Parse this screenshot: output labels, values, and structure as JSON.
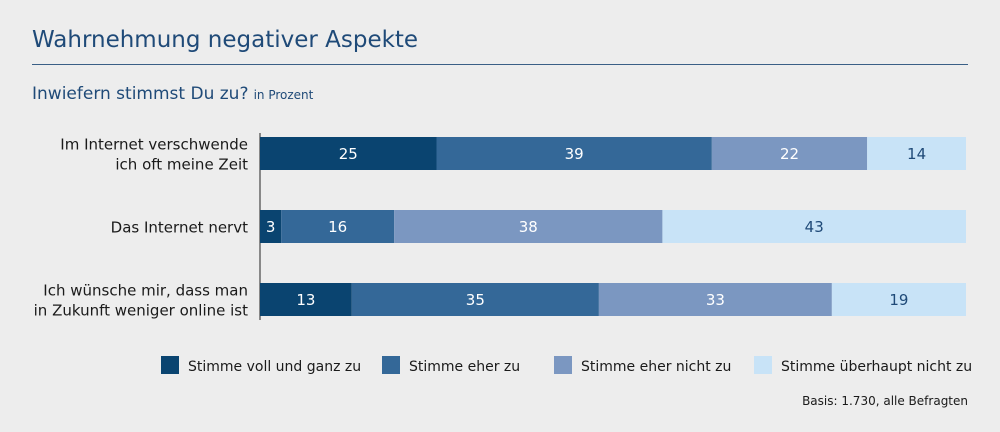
{
  "title": "Wahrnehmung negativer Aspekte",
  "subtitle": "Inwiefern stimmst Du zu?",
  "unit": "in Prozent",
  "footnote": "Basis: 1.730, alle Befragten",
  "colors": [
    "#0a4470",
    "#346898",
    "#7b97c1",
    "#c8e3f7"
  ],
  "chart_data": {
    "type": "bar",
    "orientation": "horizontal",
    "stacked": true,
    "title": "Wahrnehmung negativer Aspekte",
    "subtitle": "Inwiefern stimmst Du zu?",
    "unit": "in Prozent",
    "categories": [
      [
        "Im Internet verschwende",
        "ich oft meine Zeit"
      ],
      [
        "Das Internet nervt"
      ],
      [
        "Ich wünsche mir, dass man",
        "in Zukunft weniger online ist"
      ]
    ],
    "series": [
      {
        "name": "Stimme voll und ganz zu",
        "values": [
          25,
          3,
          13
        ]
      },
      {
        "name": "Stimme eher zu",
        "values": [
          39,
          16,
          35
        ]
      },
      {
        "name": "Stimme eher nicht zu",
        "values": [
          22,
          38,
          33
        ]
      },
      {
        "name": "Stimme überhaupt nicht zu",
        "values": [
          14,
          43,
          19
        ]
      }
    ],
    "legend": "bottom",
    "grid": false
  }
}
